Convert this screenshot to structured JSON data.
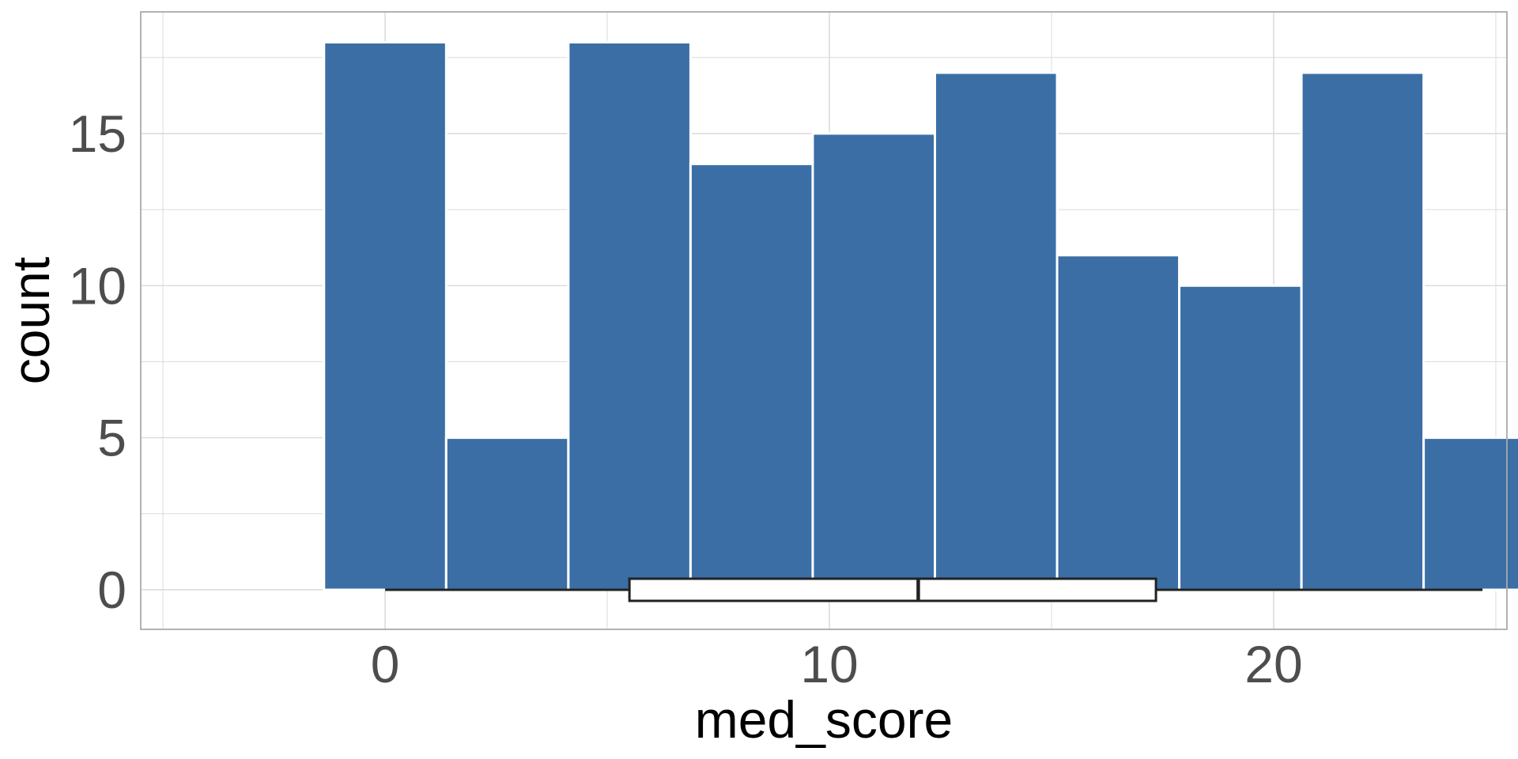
{
  "chart_data": {
    "type": "bar",
    "subtype": "histogram_with_boxplot",
    "xlabel": "med_score",
    "ylabel": "count",
    "xlim": [
      -5.5,
      25.25
    ],
    "ylim": [
      -1.3,
      19
    ],
    "x_ticks": [
      0,
      10,
      20
    ],
    "y_ticks": [
      0,
      5,
      10,
      15
    ],
    "x_tick_labels": [
      "0",
      "10",
      "20"
    ],
    "y_tick_labels": [
      "0",
      "5",
      "10",
      "15"
    ],
    "grid": true,
    "bins": [
      {
        "x0": -1.375,
        "x1": 1.375,
        "count": 18
      },
      {
        "x0": 1.375,
        "x1": 4.125,
        "count": 5
      },
      {
        "x0": 4.125,
        "x1": 6.875,
        "count": 18
      },
      {
        "x0": 6.875,
        "x1": 9.625,
        "count": 14
      },
      {
        "x0": 9.625,
        "x1": 12.375,
        "count": 15
      },
      {
        "x0": 12.375,
        "x1": 15.125,
        "count": 17
      },
      {
        "x0": 15.125,
        "x1": 17.875,
        "count": 11
      },
      {
        "x0": 17.875,
        "x1": 20.625,
        "count": 10
      },
      {
        "x0": 20.625,
        "x1": 23.375,
        "count": 17
      },
      {
        "x0": 23.375,
        "x1": 26.125,
        "count": 5
      }
    ],
    "boxplot": {
      "min": 0,
      "q1": 5.5,
      "median": 12,
      "q3": 17.35,
      "max": 24.7
    },
    "bar_color": "#3a6ea5",
    "bar_outline_color": "#ffffff",
    "box_fill_color": "#ffffff",
    "box_line_color": "#222222",
    "grid_color": "#dcdcdc",
    "panel_border_color": "#aaaaaa"
  }
}
